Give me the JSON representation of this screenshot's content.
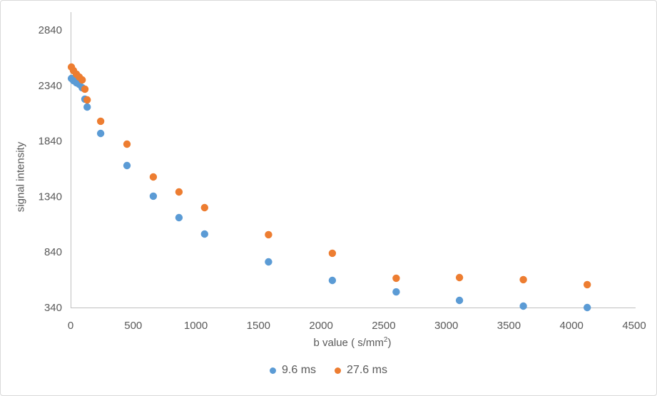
{
  "chart_data": {
    "type": "scatter",
    "title": "",
    "ylabel": "signal intensity",
    "xlabel_pre": "b value ( s/mm",
    "xlabel_sup": "2",
    "xlabel_post": ")",
    "x_ticks": [
      0,
      500,
      1000,
      1500,
      2000,
      2500,
      3000,
      3500,
      4000,
      4500
    ],
    "y_ticks": [
      340,
      840,
      1340,
      1840,
      2340,
      2840
    ],
    "xlim": [
      0,
      4500
    ],
    "ylim": [
      340,
      3000
    ],
    "grid": false,
    "legend_position": "bottom-center",
    "x": [
      6,
      23,
      46,
      69,
      92,
      114,
      132,
      240,
      450,
      660,
      865,
      1070,
      1580,
      2090,
      2600,
      3105,
      3615,
      4125
    ],
    "series": [
      {
        "name": "9.6 ms",
        "color": "#5B9BD5",
        "values": [
          2403,
          2384,
          2365,
          2350,
          2320,
          2217,
          2146,
          1908,
          1619,
          1343,
          1150,
          1002,
          751,
          584,
          481,
          404,
          353,
          340
        ]
      },
      {
        "name": "27.6 ms",
        "color": "#ED7D31",
        "values": [
          2506,
          2474,
          2442,
          2416,
          2390,
          2307,
          2210,
          2018,
          1812,
          1516,
          1381,
          1240,
          996,
          829,
          604,
          610,
          591,
          546
        ]
      }
    ]
  },
  "styles": {
    "axis_line_color": "#BFBFBF",
    "tick_text_color": "#595959",
    "border_color": "#D9D9D9",
    "background": "#FFFFFF"
  }
}
